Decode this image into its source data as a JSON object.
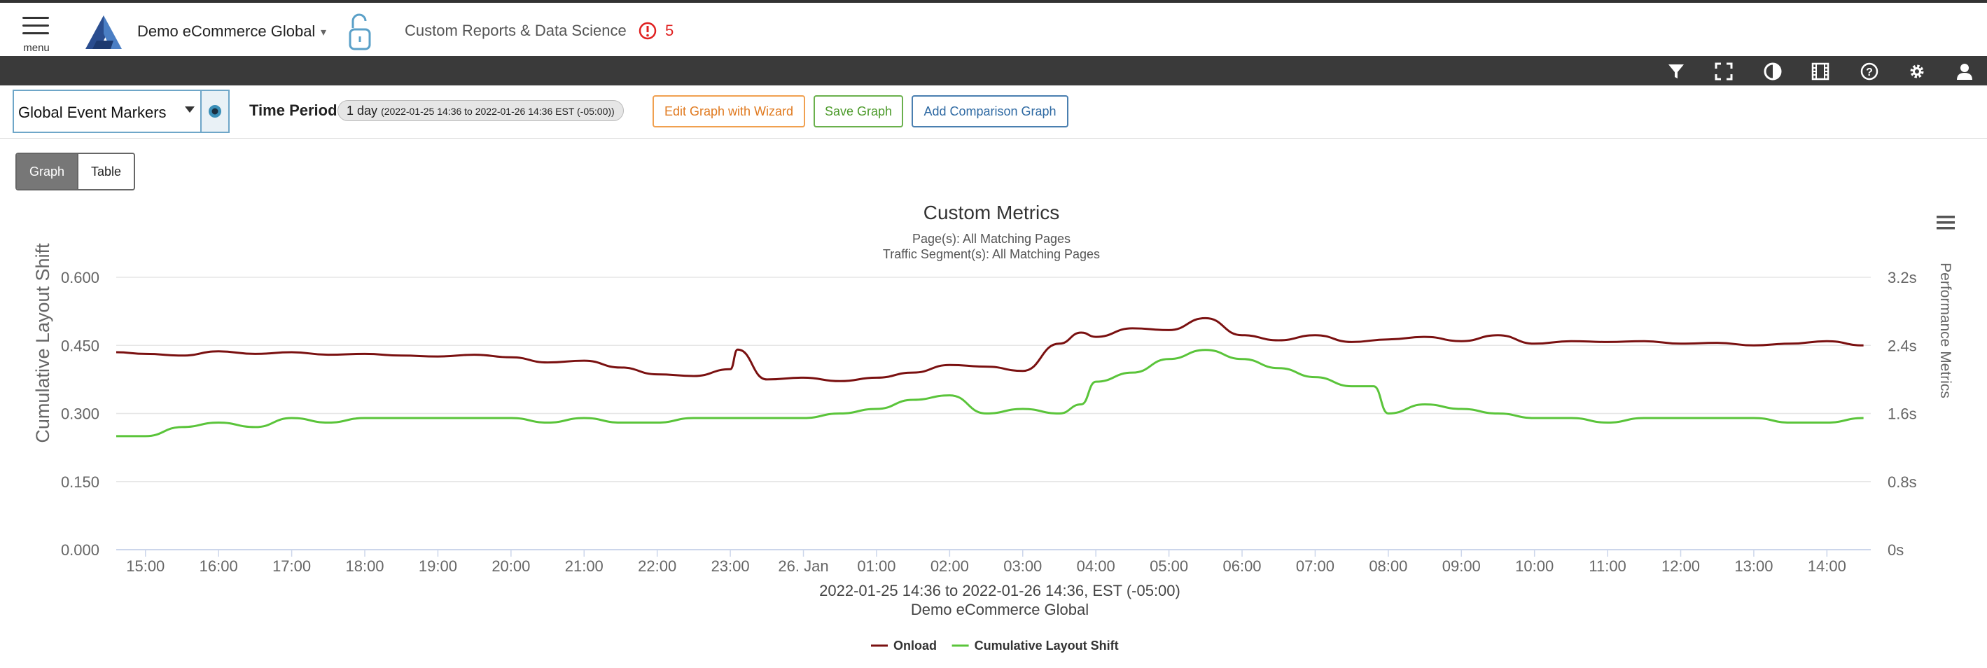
{
  "header": {
    "menu_label": "menu",
    "site_name": "Demo eCommerce Global",
    "section_title": "Custom Reports & Data Science",
    "alert_count": "5",
    "colors": {
      "alert": "#e02020",
      "logo": "#2a4d8f"
    }
  },
  "toolbar": {
    "icons": [
      "filter-icon",
      "fullscreen-icon",
      "contrast-icon",
      "film-icon",
      "help-icon",
      "gear-icon",
      "user-icon"
    ]
  },
  "controls": {
    "event_marker_select": "Global Event Markers",
    "time_period_label": "Time Period:",
    "time_period_value": "1 day",
    "time_period_range": "(2022-01-25 14:36 to 2022-01-26 14:36 EST (-05:00))",
    "edit_wizard_label": "Edit Graph with Wizard",
    "save_graph_label": "Save Graph",
    "add_comparison_label": "Add Comparison Graph"
  },
  "view_toggle": {
    "graph_label": "Graph",
    "table_label": "Table",
    "active": "graph"
  },
  "chart_data": {
    "type": "line",
    "title": "Custom Metrics",
    "subtitle_lines": [
      "Page(s): All Matching Pages",
      "Traffic Segment(s): All Matching Pages"
    ],
    "ylabel_left": "Cumulative Layout Shift",
    "ylabel_right": "Performance Metrics",
    "xlabel_lines": [
      "2022-01-25 14:36 to 2022-01-26 14:36, EST (-05:00)",
      "Demo eCommerce Global"
    ],
    "yleft_ticks": [
      "0.000",
      "0.150",
      "0.300",
      "0.450",
      "0.600"
    ],
    "yleft_lim": [
      0,
      0.6
    ],
    "yright_ticks": [
      "0s",
      "0.8s",
      "1.6s",
      "2.4s",
      "3.2s"
    ],
    "yright_lim": [
      0,
      3.2
    ],
    "x_ticks": [
      "15:00",
      "16:00",
      "17:00",
      "18:00",
      "19:00",
      "20:00",
      "21:00",
      "22:00",
      "23:00",
      "26. Jan",
      "01:00",
      "02:00",
      "03:00",
      "04:00",
      "05:00",
      "06:00",
      "07:00",
      "08:00",
      "09:00",
      "10:00",
      "11:00",
      "12:00",
      "13:00",
      "14:00"
    ],
    "x_range_hours": [
      14.6,
      38.6
    ],
    "grid": true,
    "legend_position": "bottom-center",
    "series": [
      {
        "name": "Onload",
        "axis": "right",
        "color": "#7a1010",
        "x": [
          14.6,
          15.0,
          15.5,
          16.0,
          16.5,
          17.0,
          17.5,
          18.0,
          18.5,
          19.0,
          19.5,
          20.0,
          20.5,
          21.0,
          21.5,
          22.0,
          22.5,
          23.0,
          23.1,
          23.5,
          24.0,
          24.5,
          25.0,
          25.5,
          26.0,
          26.5,
          27.0,
          27.5,
          27.8,
          28.0,
          28.5,
          29.0,
          29.5,
          30.0,
          30.5,
          31.0,
          31.5,
          32.0,
          32.5,
          33.0,
          33.5,
          34.0,
          34.5,
          35.0,
          35.5,
          36.0,
          36.5,
          37.0,
          37.5,
          38.0,
          38.5
        ],
        "values": [
          2.32,
          2.3,
          2.28,
          2.33,
          2.3,
          2.32,
          2.29,
          2.3,
          2.28,
          2.27,
          2.29,
          2.26,
          2.2,
          2.22,
          2.14,
          2.06,
          2.04,
          2.12,
          2.35,
          2.0,
          2.02,
          1.98,
          2.02,
          2.08,
          2.17,
          2.15,
          2.1,
          2.42,
          2.55,
          2.5,
          2.6,
          2.58,
          2.72,
          2.52,
          2.46,
          2.52,
          2.44,
          2.47,
          2.5,
          2.45,
          2.52,
          2.42,
          2.45,
          2.44,
          2.45,
          2.42,
          2.43,
          2.4,
          2.42,
          2.45,
          2.4
        ]
      },
      {
        "name": "Cumulative Layout Shift",
        "axis": "left",
        "color": "#5ac43a",
        "x": [
          14.6,
          15.0,
          15.5,
          16.0,
          16.5,
          17.0,
          17.5,
          18.0,
          18.5,
          19.0,
          19.5,
          20.0,
          20.5,
          21.0,
          21.5,
          22.0,
          22.5,
          23.0,
          23.5,
          24.0,
          24.5,
          25.0,
          25.5,
          26.0,
          26.5,
          27.0,
          27.5,
          27.8,
          28.0,
          28.5,
          29.0,
          29.5,
          30.0,
          30.5,
          31.0,
          31.5,
          31.8,
          32.0,
          32.5,
          33.0,
          33.5,
          34.0,
          34.5,
          35.0,
          35.5,
          36.0,
          36.5,
          37.0,
          37.5,
          38.0,
          38.5
        ],
        "values": [
          0.25,
          0.25,
          0.27,
          0.28,
          0.27,
          0.29,
          0.28,
          0.29,
          0.29,
          0.29,
          0.29,
          0.29,
          0.28,
          0.29,
          0.28,
          0.28,
          0.29,
          0.29,
          0.29,
          0.29,
          0.3,
          0.31,
          0.33,
          0.34,
          0.3,
          0.31,
          0.3,
          0.32,
          0.37,
          0.39,
          0.42,
          0.44,
          0.42,
          0.4,
          0.38,
          0.36,
          0.36,
          0.3,
          0.32,
          0.31,
          0.3,
          0.29,
          0.29,
          0.28,
          0.29,
          0.29,
          0.29,
          0.29,
          0.28,
          0.28,
          0.29
        ]
      }
    ]
  }
}
